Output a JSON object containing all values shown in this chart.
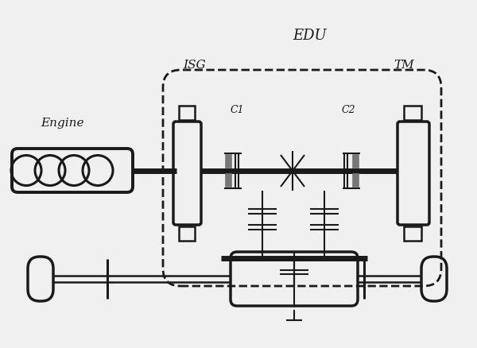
{
  "title": "EDU",
  "label_isg": "ISG",
  "label_tm": "TM",
  "label_engine": "Engine",
  "label_c1": "C1",
  "label_c2": "C2",
  "bg_color": "#f0f0f0",
  "line_color": "#1a1a1a",
  "gray_color": "#777777",
  "white_color": "#f0f0f0"
}
